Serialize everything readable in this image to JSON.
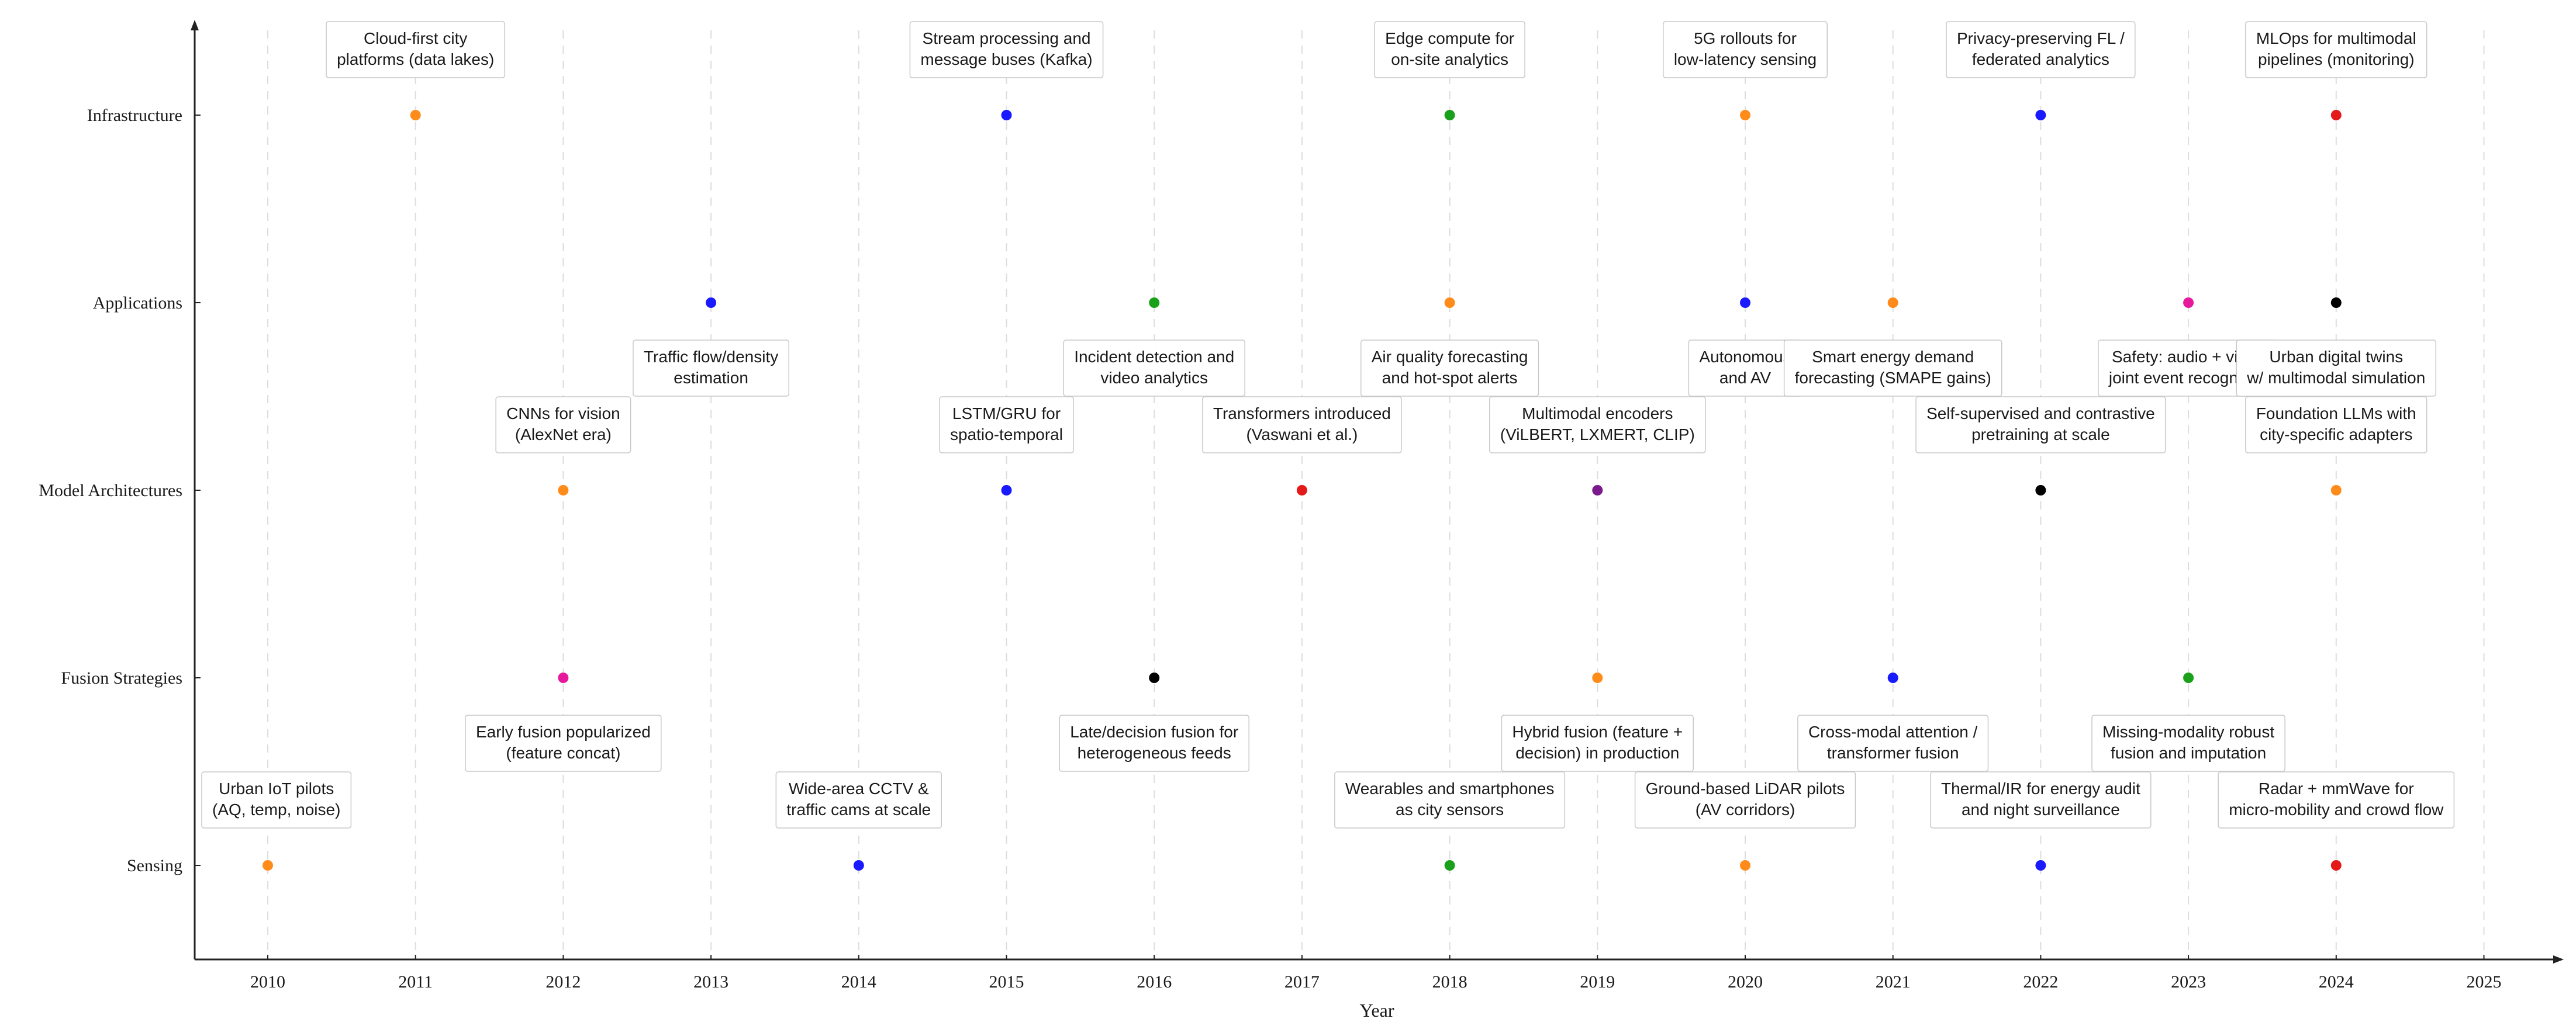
{
  "chart_data": {
    "type": "timeline",
    "title": "",
    "xlabel": "Year",
    "ylabel": "",
    "xlim": [
      2009.5,
      2025.5
    ],
    "x_ticks": [
      2010,
      2011,
      2012,
      2013,
      2014,
      2015,
      2016,
      2017,
      2018,
      2019,
      2020,
      2021,
      2022,
      2023,
      2024,
      2025
    ],
    "grid": "vertical dashed",
    "lanes": [
      "Infrastructure",
      "Applications",
      "Model Architectures",
      "Fusion Strategies",
      "Sensing"
    ],
    "events": [
      {
        "lane": "Infrastructure",
        "year": 2011,
        "color": "#ff8c1a",
        "label_pos": "above",
        "label": [
          "Cloud-first city",
          "platforms (data lakes)"
        ]
      },
      {
        "lane": "Infrastructure",
        "year": 2015,
        "color": "#1a1aff",
        "label_pos": "above",
        "label": [
          "Stream processing and",
          "message buses (Kafka)"
        ]
      },
      {
        "lane": "Infrastructure",
        "year": 2018,
        "color": "#1aa01a",
        "label_pos": "above",
        "label": [
          "Edge compute for",
          "on-site analytics"
        ]
      },
      {
        "lane": "Infrastructure",
        "year": 2020,
        "color": "#ff8c1a",
        "label_pos": "above",
        "label": [
          "5G rollouts for",
          "low-latency sensing"
        ]
      },
      {
        "lane": "Infrastructure",
        "year": 2022,
        "color": "#1a1aff",
        "label_pos": "above",
        "label": [
          "Privacy-preserving FL /",
          "federated analytics"
        ]
      },
      {
        "lane": "Infrastructure",
        "year": 2024,
        "color": "#e41a1a",
        "label_pos": "above",
        "label": [
          "MLOps for multimodal",
          "pipelines (monitoring)"
        ]
      },
      {
        "lane": "Applications",
        "year": 2013,
        "color": "#1a1aff",
        "label_pos": "below",
        "label": [
          "Traffic flow/density",
          "estimation"
        ]
      },
      {
        "lane": "Applications",
        "year": 2016,
        "color": "#1aa01a",
        "label_pos": "below",
        "label": [
          "Incident detection and",
          "video analytics"
        ]
      },
      {
        "lane": "Applications",
        "year": 2018,
        "color": "#ff8c1a",
        "label_pos": "below",
        "label": [
          "Air quality forecasting",
          "and hot-spot alerts"
        ]
      },
      {
        "lane": "Applications",
        "year": 2020,
        "color": "#1a1aff",
        "label_pos": "below",
        "label": [
          "Autonomous",
          "and AV"
        ]
      },
      {
        "lane": "Applications",
        "year": 2021,
        "color": "#ff8c1a",
        "label_pos": "below",
        "label": [
          "Smart energy demand",
          "forecasting (SMAPE gains)"
        ]
      },
      {
        "lane": "Applications",
        "year": 2023,
        "color": "#e6199c",
        "label_pos": "below",
        "label": [
          "Safety: audio + video",
          "joint event recognition"
        ]
      },
      {
        "lane": "Applications",
        "year": 2024,
        "color": "#000000",
        "label_pos": "below",
        "label": [
          "Urban digital twins",
          "w/ multimodal simulation"
        ]
      },
      {
        "lane": "Model Architectures",
        "year": 2012,
        "color": "#ff8c1a",
        "label_pos": "above",
        "label": [
          "CNNs for vision",
          "(AlexNet era)"
        ]
      },
      {
        "lane": "Model Architectures",
        "year": 2015,
        "color": "#1a1aff",
        "label_pos": "above",
        "label": [
          "LSTM/GRU for",
          "spatio-temporal"
        ]
      },
      {
        "lane": "Model Architectures",
        "year": 2017,
        "color": "#e41a1a",
        "label_pos": "above",
        "label": [
          "Transformers introduced",
          "(Vaswani et al.)"
        ]
      },
      {
        "lane": "Model Architectures",
        "year": 2019,
        "color": "#7a1a8c",
        "label_pos": "above",
        "label": [
          "Multimodal encoders",
          "(ViLBERT, LXMERT, CLIP)"
        ]
      },
      {
        "lane": "Model Architectures",
        "year": 2022,
        "color": "#000000",
        "label_pos": "above",
        "label": [
          "Self-supervised and contrastive",
          "pretraining at scale"
        ]
      },
      {
        "lane": "Model Architectures",
        "year": 2024,
        "color": "#ff8c1a",
        "label_pos": "above",
        "label": [
          "Foundation LLMs with",
          "city-specific adapters"
        ]
      },
      {
        "lane": "Fusion Strategies",
        "year": 2012,
        "color": "#e6199c",
        "label_pos": "below",
        "label": [
          "Early fusion popularized",
          "(feature concat)"
        ]
      },
      {
        "lane": "Fusion Strategies",
        "year": 2016,
        "color": "#000000",
        "label_pos": "below",
        "label": [
          "Late/decision fusion for",
          "heterogeneous feeds"
        ]
      },
      {
        "lane": "Fusion Strategies",
        "year": 2019,
        "color": "#ff8c1a",
        "label_pos": "below",
        "label": [
          "Hybrid fusion (feature +",
          "decision) in production"
        ]
      },
      {
        "lane": "Fusion Strategies",
        "year": 2021,
        "color": "#1a1aff",
        "label_pos": "below",
        "label": [
          "Cross-modal attention /",
          "transformer fusion"
        ]
      },
      {
        "lane": "Fusion Strategies",
        "year": 2023,
        "color": "#1aa01a",
        "label_pos": "below",
        "label": [
          "Missing-modality robust",
          "fusion and imputation"
        ]
      },
      {
        "lane": "Sensing",
        "year": 2010,
        "color": "#ff8c1a",
        "label_pos": "above",
        "label": [
          "Urban IoT pilots",
          "(AQ, temp, noise)"
        ]
      },
      {
        "lane": "Sensing",
        "year": 2014,
        "color": "#1a1aff",
        "label_pos": "above",
        "label": [
          "Wide-area CCTV &",
          "traffic cams at scale"
        ]
      },
      {
        "lane": "Sensing",
        "year": 2018,
        "color": "#1aa01a",
        "label_pos": "above",
        "label": [
          "Wearables and smartphones",
          "as city sensors"
        ]
      },
      {
        "lane": "Sensing",
        "year": 2020,
        "color": "#ff8c1a",
        "label_pos": "above",
        "label": [
          "Ground-based LiDAR pilots",
          "(AV corridors)"
        ]
      },
      {
        "lane": "Sensing",
        "year": 2022,
        "color": "#1a1aff",
        "label_pos": "above",
        "label": [
          "Thermal/IR for energy audit",
          "and night surveillance"
        ]
      },
      {
        "lane": "Sensing",
        "year": 2024,
        "color": "#e41a1a",
        "label_pos": "above",
        "label": [
          "Radar + mmWave for",
          "micro-mobility and crowd flow"
        ]
      }
    ]
  }
}
